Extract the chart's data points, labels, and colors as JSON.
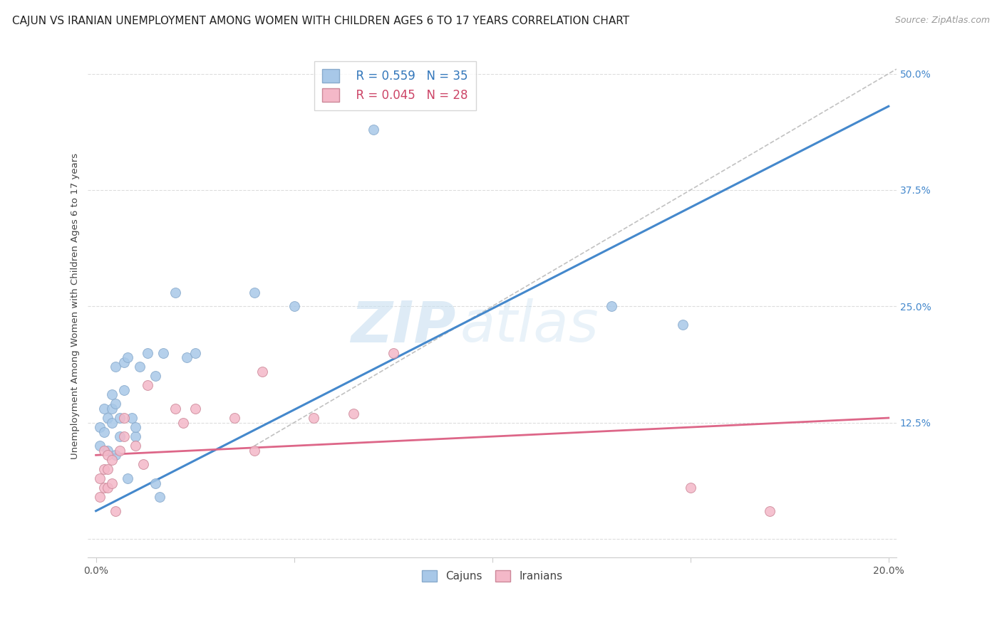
{
  "title": "CAJUN VS IRANIAN UNEMPLOYMENT AMONG WOMEN WITH CHILDREN AGES 6 TO 17 YEARS CORRELATION CHART",
  "source": "Source: ZipAtlas.com",
  "ylabel": "Unemployment Among Women with Children Ages 6 to 17 years",
  "xlim": [
    -0.002,
    0.202
  ],
  "ylim": [
    -0.02,
    0.52
  ],
  "xticks": [
    0.0,
    0.05,
    0.1,
    0.15,
    0.2
  ],
  "xtick_labels": [
    "0.0%",
    "",
    "",
    "",
    "20.0%"
  ],
  "yticks": [
    0.0,
    0.125,
    0.25,
    0.375,
    0.5
  ],
  "ytick_labels_right": [
    "",
    "12.5%",
    "25.0%",
    "37.5%",
    "50.0%"
  ],
  "legend_blue_r": "R = 0.559",
  "legend_blue_n": "N = 35",
  "legend_pink_r": "R = 0.045",
  "legend_pink_n": "N = 28",
  "legend_label_blue": "Cajuns",
  "legend_label_pink": "Iranians",
  "blue_color": "#a8c8e8",
  "pink_color": "#f4b8c8",
  "blue_line_color": "#4488cc",
  "pink_line_color": "#dd6688",
  "cajun_x": [
    0.001,
    0.001,
    0.002,
    0.002,
    0.003,
    0.003,
    0.004,
    0.004,
    0.004,
    0.005,
    0.005,
    0.005,
    0.006,
    0.006,
    0.007,
    0.007,
    0.008,
    0.008,
    0.009,
    0.01,
    0.01,
    0.011,
    0.013,
    0.015,
    0.015,
    0.016,
    0.017,
    0.02,
    0.023,
    0.025,
    0.04,
    0.05,
    0.07,
    0.13,
    0.148
  ],
  "cajun_y": [
    0.1,
    0.12,
    0.115,
    0.14,
    0.095,
    0.13,
    0.155,
    0.14,
    0.125,
    0.185,
    0.145,
    0.09,
    0.13,
    0.11,
    0.19,
    0.16,
    0.195,
    0.065,
    0.13,
    0.11,
    0.12,
    0.185,
    0.2,
    0.175,
    0.06,
    0.045,
    0.2,
    0.265,
    0.195,
    0.2,
    0.265,
    0.25,
    0.44,
    0.25,
    0.23
  ],
  "iranian_x": [
    0.001,
    0.001,
    0.002,
    0.002,
    0.002,
    0.003,
    0.003,
    0.003,
    0.004,
    0.004,
    0.005,
    0.006,
    0.007,
    0.007,
    0.01,
    0.012,
    0.013,
    0.02,
    0.022,
    0.025,
    0.035,
    0.04,
    0.042,
    0.055,
    0.065,
    0.075,
    0.15,
    0.17
  ],
  "iranian_y": [
    0.065,
    0.045,
    0.095,
    0.075,
    0.055,
    0.09,
    0.075,
    0.055,
    0.085,
    0.06,
    0.03,
    0.095,
    0.13,
    0.11,
    0.1,
    0.08,
    0.165,
    0.14,
    0.125,
    0.14,
    0.13,
    0.095,
    0.18,
    0.13,
    0.135,
    0.2,
    0.055,
    0.03
  ],
  "blue_line_x": [
    0.0,
    0.2
  ],
  "blue_line_y": [
    0.03,
    0.465
  ],
  "pink_line_x": [
    0.0,
    0.2
  ],
  "pink_line_y": [
    0.09,
    0.13
  ],
  "ref_line_x": [
    0.04,
    0.202
  ],
  "ref_line_y": [
    0.1,
    0.505
  ],
  "watermark_zip": "ZIP",
  "watermark_atlas": "atlas",
  "background_color": "#ffffff",
  "grid_color": "#dddddd",
  "title_fontsize": 11,
  "axis_label_fontsize": 9.5,
  "tick_fontsize": 10,
  "marker_size": 100
}
